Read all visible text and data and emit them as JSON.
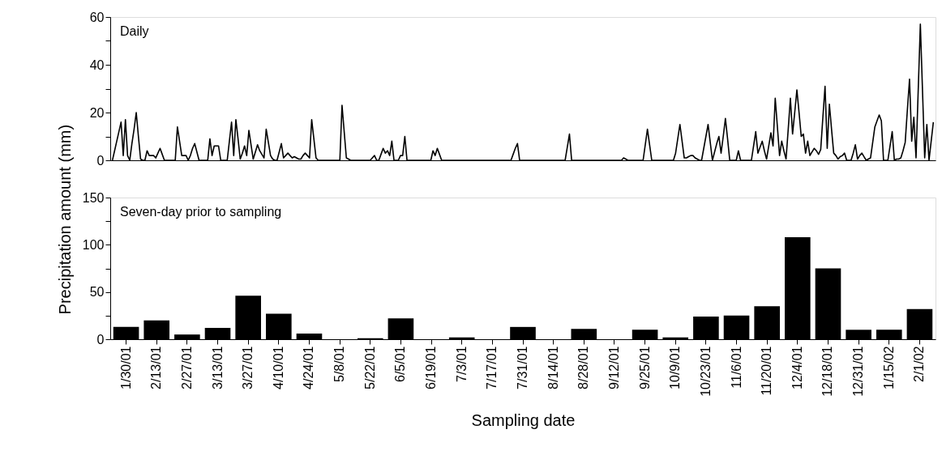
{
  "chart_data": [
    {
      "type": "line",
      "title": "Daily",
      "ylabel": "Precipitation amount (mm)",
      "color": "#000000",
      "tick_labels": "y",
      "ylim": [
        0,
        60
      ],
      "yticks": [
        0,
        {
          "value": 10,
          "label": null
        },
        20,
        {
          "value": 30,
          "label": null
        },
        40,
        {
          "value": 50,
          "label": null
        },
        60
      ],
      "categories": [
        null,
        null,
        null,
        null,
        null,
        null,
        null,
        null,
        null,
        null,
        null,
        null,
        null,
        null,
        null,
        null,
        null,
        null,
        null,
        null,
        null,
        null,
        null,
        null,
        null,
        null,
        null,
        null,
        null,
        null,
        null,
        null,
        null,
        null,
        null,
        null,
        null,
        null,
        null,
        null,
        null,
        null,
        null,
        null,
        null,
        null,
        null,
        null,
        null,
        null,
        null,
        null,
        null,
        null,
        null,
        null,
        null,
        null,
        null,
        null,
        null,
        null,
        null,
        null,
        null,
        null,
        null,
        null,
        null,
        null,
        null,
        null,
        null,
        null,
        null,
        null,
        null,
        null,
        null,
        null,
        null,
        null,
        null,
        null,
        null,
        null,
        null,
        null,
        null,
        null,
        null,
        null,
        null,
        null,
        null,
        null,
        null,
        null,
        null,
        null,
        null,
        null,
        null,
        null,
        null,
        null,
        null,
        null,
        null,
        null,
        null,
        null,
        null,
        null,
        null,
        null,
        null,
        null,
        null,
        null,
        null,
        null,
        null,
        null,
        null,
        null,
        null,
        null,
        null,
        null,
        null,
        null,
        null,
        null,
        null,
        null,
        null,
        null,
        null,
        null,
        null,
        null,
        null,
        null,
        null,
        null,
        null,
        null,
        null,
        null,
        null,
        null,
        null,
        null,
        null,
        null,
        null,
        null,
        null,
        null,
        null,
        null,
        null,
        null,
        null,
        null,
        null,
        null,
        null,
        null,
        null,
        null,
        null,
        null,
        null,
        null,
        null,
        null,
        null,
        null,
        null,
        null,
        null,
        null,
        null,
        null,
        null,
        null,
        null,
        null,
        null,
        null,
        null,
        null,
        null,
        null,
        null,
        null,
        null,
        null,
        null,
        null,
        null,
        null,
        null,
        null,
        null,
        null,
        null,
        null,
        null,
        null,
        null,
        null,
        null,
        null,
        null,
        null,
        null,
        null,
        null,
        null,
        null,
        null,
        null,
        null,
        null,
        null,
        null,
        null,
        null,
        null,
        null,
        null,
        null,
        null,
        null,
        null,
        null,
        null,
        null,
        null,
        null,
        null,
        null,
        null,
        null,
        null,
        null,
        null,
        null,
        null,
        null,
        null,
        null,
        null,
        null,
        null,
        null,
        null,
        null,
        null,
        null,
        null,
        null,
        null,
        null,
        null,
        null,
        null,
        null,
        null,
        null,
        null,
        null,
        null,
        null,
        null,
        null,
        null,
        null,
        null,
        null,
        null,
        null,
        null,
        null,
        null,
        null,
        null,
        null,
        null,
        null,
        null,
        null,
        null,
        null,
        null,
        null,
        null,
        null,
        null,
        null,
        null,
        null,
        null,
        null,
        null,
        null,
        null,
        null,
        null,
        null,
        null,
        null,
        null,
        null,
        null,
        null,
        null,
        null,
        null,
        null,
        null,
        null,
        null,
        null,
        null,
        null,
        null,
        null,
        null,
        null,
        null,
        null,
        null,
        null,
        null,
        null,
        null,
        null,
        null,
        null,
        null,
        null,
        null,
        null,
        null,
        null,
        null,
        null,
        null,
        null,
        null,
        null,
        null,
        null,
        null,
        null,
        null,
        null,
        null,
        null,
        null,
        null,
        null,
        null,
        null,
        null,
        null,
        null,
        null,
        null,
        null,
        null,
        null,
        null,
        null,
        null,
        null
      ],
      "values": [
        0,
        4,
        8,
        12,
        16,
        2,
        17,
        2,
        0,
        7,
        13,
        20,
        10,
        0.5,
        0,
        0,
        4,
        2,
        2,
        2,
        1,
        3,
        5,
        2.5,
        0,
        0,
        0,
        0,
        0,
        0,
        14,
        8,
        2,
        2,
        2,
        0,
        2,
        5,
        7,
        3.5,
        0,
        0,
        0,
        0,
        0,
        9,
        2,
        6,
        6,
        6,
        0,
        0,
        0,
        0,
        8,
        16,
        2,
        17,
        9,
        0.5,
        3,
        6,
        2,
        12.5,
        6.5,
        0.5,
        3.5,
        6.5,
        4,
        2.5,
        1,
        13,
        7.5,
        2,
        0.5,
        0,
        0,
        3.5,
        7,
        1,
        2,
        3,
        2,
        1,
        1.5,
        1,
        0.5,
        0.5,
        2,
        3,
        2,
        1,
        17,
        9,
        1,
        0,
        0,
        0,
        0,
        0,
        0,
        0,
        0,
        0,
        0,
        0,
        23,
        12,
        1,
        0.5,
        0,
        0,
        0,
        0,
        0,
        0,
        0,
        0,
        0,
        0,
        1,
        2,
        0,
        0,
        2.5,
        5,
        3,
        4,
        2,
        8,
        0,
        0,
        0,
        2,
        2,
        10,
        0,
        0,
        0,
        0,
        0,
        0,
        0,
        0,
        0,
        0,
        0,
        0,
        4,
        2,
        5,
        2.5,
        0,
        0,
        0,
        0,
        0,
        0,
        0,
        0,
        0,
        0,
        0,
        0,
        0,
        0,
        0,
        0,
        0,
        0,
        0,
        0,
        0,
        0,
        0,
        0,
        0,
        0,
        0,
        0,
        0,
        0,
        0,
        0,
        0,
        2.5,
        5,
        7,
        0,
        0,
        0,
        0,
        0,
        0,
        0,
        0,
        0,
        0,
        0,
        0,
        0,
        0,
        0,
        0,
        0,
        0,
        0,
        0,
        0,
        0,
        5.5,
        11,
        0,
        0,
        0,
        0,
        0,
        0,
        0,
        0,
        0,
        0,
        0,
        0,
        0,
        0,
        0,
        0,
        0,
        0,
        0,
        0,
        0,
        0,
        0,
        0,
        1,
        0.5,
        0,
        0,
        0,
        0,
        0,
        0,
        0,
        0,
        6.5,
        13,
        6.5,
        0,
        0,
        0,
        0,
        0,
        0,
        0,
        0,
        0,
        0,
        0,
        3,
        9,
        15,
        8,
        1,
        1,
        1.5,
        2,
        2,
        1,
        0.5,
        0,
        0,
        5,
        10,
        15,
        7.5,
        0,
        3.5,
        7,
        10,
        3,
        10,
        17.5,
        9,
        0,
        0,
        0,
        0,
        4,
        0,
        0,
        0,
        0,
        0,
        0,
        6,
        12,
        3,
        5.5,
        8,
        4,
        0.5,
        6,
        11.5,
        6,
        26,
        14,
        2,
        8,
        4,
        0.5,
        13,
        26,
        11,
        20,
        29.5,
        20,
        10,
        11,
        3,
        8,
        2,
        3.5,
        5,
        4,
        2.5,
        4.5,
        18,
        31,
        5,
        23.5,
        13,
        3,
        2,
        0.5,
        1.5,
        2,
        3,
        0,
        0,
        0,
        3,
        6.5,
        0.5,
        2,
        3,
        1.5,
        0,
        0.5,
        1,
        7.5,
        14,
        16.5,
        19,
        16.5,
        0,
        0,
        0,
        6,
        12,
        0,
        0.5,
        0.5,
        1,
        4,
        7.5,
        21,
        34,
        8,
        18,
        1,
        29,
        57,
        29,
        1,
        15,
        0,
        8,
        16
      ]
    },
    {
      "type": "bar",
      "title": "Seven-day prior to sampling",
      "xlabel": "Sampling date",
      "color": "#000000",
      "categories": [
        "1/30/01",
        "2/13/01",
        "2/27/01",
        "3/13/01",
        "3/27/01",
        "4/10/01",
        "4/24/01",
        "5/8/01",
        "5/22/01",
        "6/5/01",
        "6/19/01",
        "7/3/01",
        "7/17/01",
        "7/31/01",
        "8/14/01",
        "8/28/01",
        "9/12/01",
        "9/25/01",
        "10/9/01",
        "10/23/01",
        "11/6/01",
        "11/20/01",
        "12/4/01",
        "12/18/01",
        "12/31/01",
        "1/15/02",
        "2/1/02"
      ],
      "values": [
        13,
        20,
        5,
        12,
        46,
        27,
        6,
        0,
        1,
        22,
        0,
        2,
        0,
        13,
        0,
        11,
        0,
        10,
        2,
        24,
        25,
        35,
        108,
        75,
        10,
        10,
        32
      ],
      "ylim": [
        0,
        150
      ],
      "yticks": [
        0,
        {
          "value": 25,
          "label": null
        },
        50,
        {
          "value": 75,
          "label": null
        },
        100,
        {
          "value": 125,
          "label": null
        },
        150
      ]
    }
  ]
}
